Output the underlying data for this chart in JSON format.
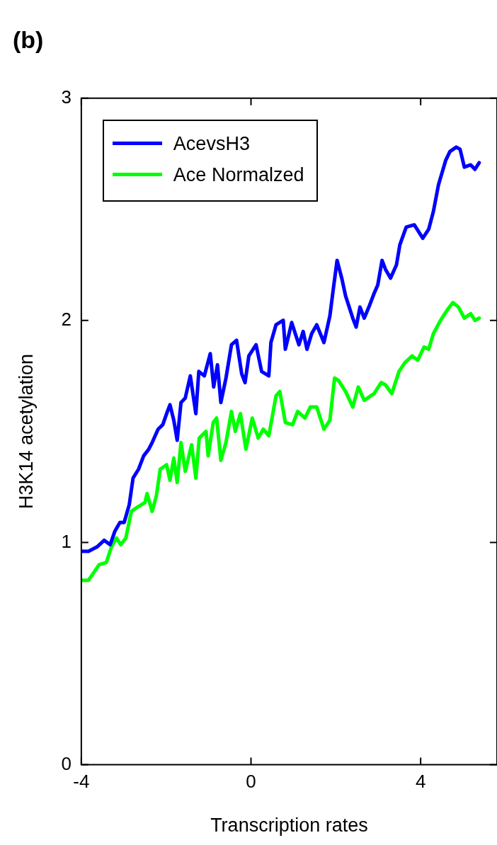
{
  "chart_data": {
    "type": "line",
    "title": "(b)",
    "xlabel": "Transcription rates",
    "ylabel": "H3K14 acetylation",
    "xlim": [
      -4,
      5.8
    ],
    "xticks": [
      -4,
      0,
      4
    ],
    "ylim": [
      0,
      3
    ],
    "yticks": [
      0,
      1,
      2,
      3
    ],
    "grid": false,
    "legend": "top left",
    "marker": "none",
    "line_style": "solid",
    "series": [
      {
        "name": "AcevsH3",
        "color": "#0000ff",
        "x": [
          -4.0,
          -3.83,
          -3.63,
          -3.46,
          -3.32,
          -3.21,
          -3.09,
          -2.99,
          -2.87,
          -2.78,
          -2.65,
          -2.53,
          -2.41,
          -2.33,
          -2.19,
          -2.08,
          -1.97,
          -1.91,
          -1.82,
          -1.74,
          -1.65,
          -1.55,
          -1.43,
          -1.3,
          -1.23,
          -1.1,
          -0.96,
          -0.88,
          -0.79,
          -0.71,
          -0.59,
          -0.46,
          -0.34,
          -0.22,
          -0.14,
          -0.05,
          0.12,
          0.25,
          0.42,
          0.47,
          0.59,
          0.76,
          0.81,
          0.96,
          1.13,
          1.23,
          1.32,
          1.43,
          1.55,
          1.72,
          1.86,
          1.94,
          2.03,
          2.14,
          2.23,
          2.4,
          2.48,
          2.57,
          2.67,
          2.78,
          2.9,
          2.99,
          3.09,
          3.17,
          3.29,
          3.43,
          3.51,
          3.66,
          3.85,
          4.05,
          4.19,
          4.3,
          4.42,
          4.59,
          4.69,
          4.84,
          4.93,
          5.03,
          5.18,
          5.28,
          5.38
        ],
        "values": [
          0.96,
          0.96,
          0.98,
          1.01,
          0.99,
          1.05,
          1.09,
          1.09,
          1.17,
          1.29,
          1.33,
          1.39,
          1.42,
          1.45,
          1.51,
          1.53,
          1.59,
          1.62,
          1.55,
          1.46,
          1.63,
          1.65,
          1.75,
          1.58,
          1.77,
          1.75,
          1.85,
          1.7,
          1.8,
          1.63,
          1.74,
          1.89,
          1.91,
          1.76,
          1.72,
          1.84,
          1.89,
          1.77,
          1.75,
          1.9,
          1.98,
          2.0,
          1.87,
          1.99,
          1.89,
          1.95,
          1.87,
          1.94,
          1.98,
          1.9,
          2.02,
          2.14,
          2.27,
          2.19,
          2.11,
          2.01,
          1.97,
          2.06,
          2.01,
          2.06,
          2.12,
          2.16,
          2.27,
          2.23,
          2.19,
          2.25,
          2.34,
          2.42,
          2.43,
          2.37,
          2.41,
          2.49,
          2.61,
          2.72,
          2.76,
          2.78,
          2.77,
          2.69,
          2.7,
          2.68,
          2.71
        ]
      },
      {
        "name": "Ace Normalzed",
        "color": "#00ff00",
        "x": [
          -4.0,
          -3.83,
          -3.58,
          -3.41,
          -3.29,
          -3.17,
          -3.07,
          -2.95,
          -2.82,
          -2.67,
          -2.5,
          -2.45,
          -2.33,
          -2.23,
          -2.14,
          -1.99,
          -1.91,
          -1.82,
          -1.74,
          -1.65,
          -1.55,
          -1.4,
          -1.3,
          -1.22,
          -1.06,
          -1.01,
          -0.89,
          -0.81,
          -0.71,
          -0.59,
          -0.46,
          -0.37,
          -0.25,
          -0.12,
          0.03,
          0.17,
          0.29,
          0.42,
          0.59,
          0.68,
          0.81,
          0.98,
          1.1,
          1.27,
          1.4,
          1.55,
          1.72,
          1.86,
          1.97,
          2.06,
          2.23,
          2.4,
          2.53,
          2.67,
          2.9,
          3.07,
          3.17,
          3.32,
          3.49,
          3.63,
          3.8,
          3.93,
          4.08,
          4.19,
          4.3,
          4.47,
          4.64,
          4.76,
          4.89,
          5.03,
          5.18,
          5.28,
          5.38
        ],
        "values": [
          0.83,
          0.83,
          0.9,
          0.91,
          0.98,
          1.02,
          0.99,
          1.02,
          1.14,
          1.16,
          1.18,
          1.22,
          1.14,
          1.21,
          1.33,
          1.35,
          1.28,
          1.38,
          1.27,
          1.45,
          1.32,
          1.44,
          1.29,
          1.47,
          1.5,
          1.39,
          1.54,
          1.56,
          1.37,
          1.45,
          1.59,
          1.5,
          1.58,
          1.42,
          1.56,
          1.47,
          1.51,
          1.48,
          1.66,
          1.68,
          1.54,
          1.53,
          1.59,
          1.56,
          1.61,
          1.61,
          1.51,
          1.55,
          1.74,
          1.73,
          1.68,
          1.61,
          1.7,
          1.64,
          1.67,
          1.72,
          1.71,
          1.67,
          1.77,
          1.81,
          1.84,
          1.82,
          1.88,
          1.87,
          1.94,
          2.0,
          2.05,
          2.08,
          2.06,
          2.01,
          2.03,
          2.0,
          2.01
        ]
      }
    ]
  }
}
